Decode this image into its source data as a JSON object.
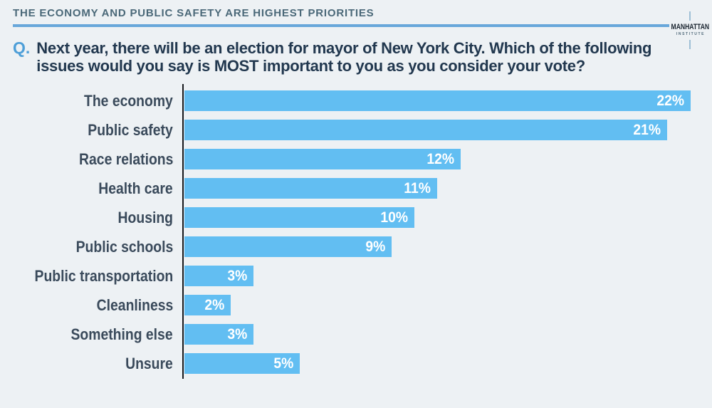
{
  "header": {
    "title": "THE ECONOMY AND PUBLIC SAFETY ARE HIGHEST PRIORITIES"
  },
  "logo": {
    "line1": "MANHATTAN",
    "line2": "INSTITUTE"
  },
  "question": {
    "prefix": "Q.",
    "line1": "Next year, there will be an election for mayor of New York City. Which of the following",
    "line2": "issues would you say is MOST important to you as you consider your vote?"
  },
  "colors": {
    "background": "#EDF1F4",
    "header_text": "#4A6878",
    "header_rule": "#68A7DA",
    "question_prefix": "#4E9FD8",
    "question_text": "#22384F",
    "category_label": "#3A4A5B",
    "axis_line": "#16191D",
    "bar_value_text": "#FFFFFF"
  },
  "chart_data": {
    "type": "bar",
    "orientation": "horizontal",
    "title": "THE ECONOMY AND PUBLIC SAFETY ARE HIGHEST PRIORITIES",
    "categories": [
      "The economy",
      "Public safety",
      "Race relations",
      "Health care",
      "Housing",
      "Public schools",
      "Public transportation",
      "Cleanliness",
      "Something else",
      "Unsure"
    ],
    "values": [
      22,
      21,
      12,
      11,
      10,
      9,
      3,
      2,
      3,
      5
    ],
    "value_labels": [
      "22%",
      "21%",
      "12%",
      "11%",
      "10%",
      "9%",
      "3%",
      "2%",
      "3%",
      "5%"
    ],
    "unit": "percent",
    "xlim": [
      0,
      22
    ],
    "grid": false,
    "legend": false,
    "bar_color": "#62BEF2"
  }
}
